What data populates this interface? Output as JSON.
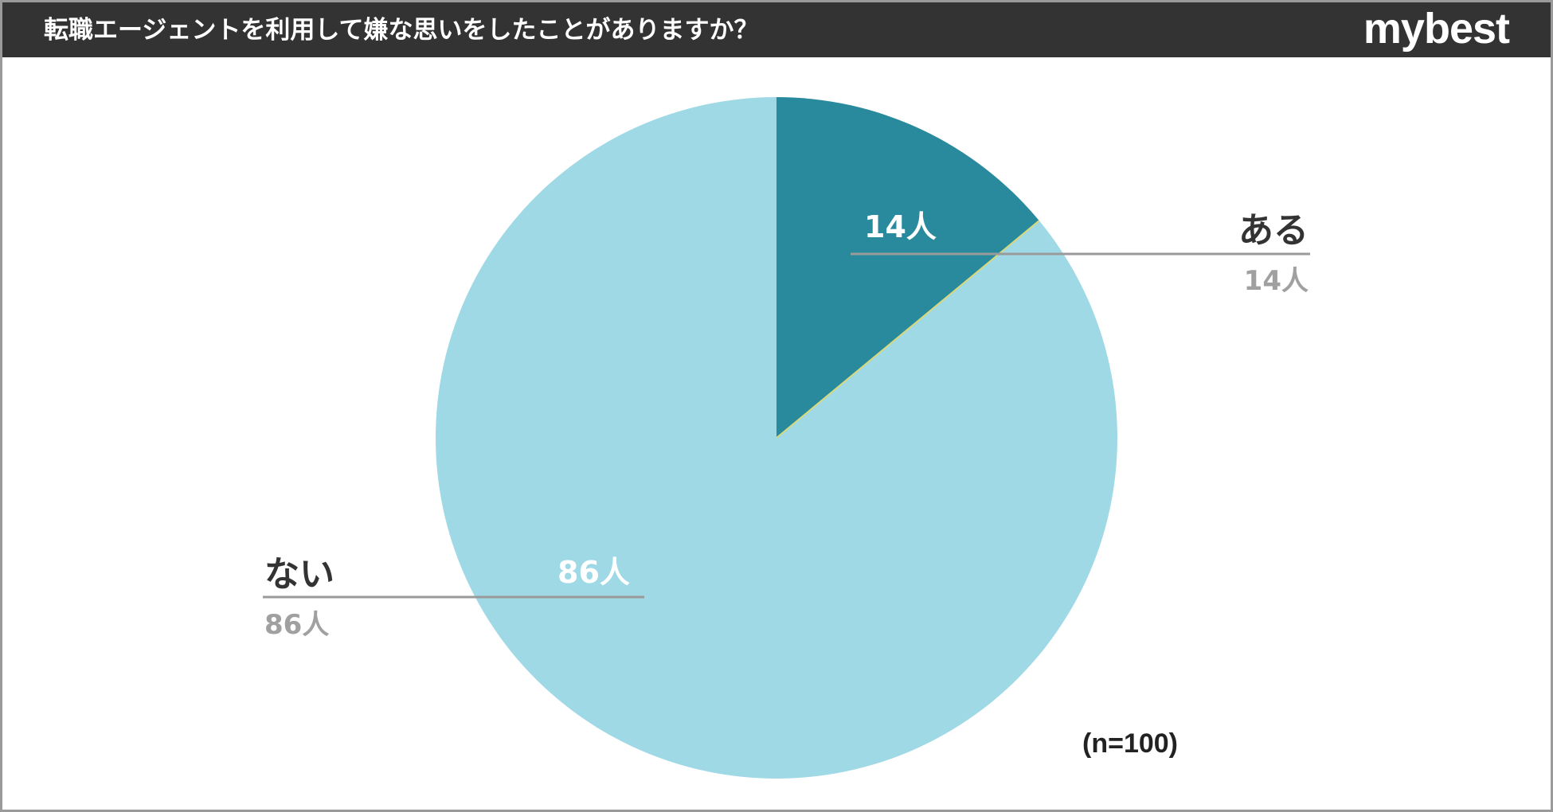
{
  "header": {
    "title": "転職エージェントを利用して嫌な思いをしたことがありますか？",
    "brand": "mybest"
  },
  "colors": {
    "header_bg": "#333333",
    "slice_yes": "#2a8a9d",
    "slice_no": "#9fd9e6",
    "leader_line": "#9a9a9a",
    "separator": "#d9d87a"
  },
  "chart_data": {
    "type": "pie",
    "title": "転職エージェントを利用して嫌な思いをしたことがありますか？",
    "unit": "人",
    "slices": [
      {
        "label": "ある",
        "value": 14,
        "display": "14人",
        "color": "#2a8a9d"
      },
      {
        "label": "ない",
        "value": 86,
        "display": "86人",
        "color": "#9fd9e6"
      }
    ],
    "total": 100,
    "note": "(n=100)"
  }
}
